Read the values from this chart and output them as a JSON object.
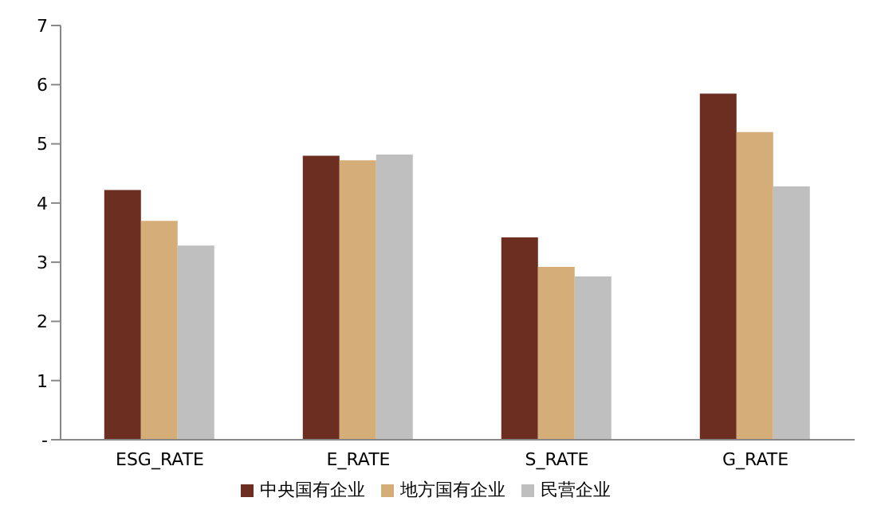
{
  "chart_data": {
    "type": "bar",
    "categories": [
      "ESG_RATE",
      "E_RATE",
      "S_RATE",
      "G_RATE"
    ],
    "series": [
      {
        "name": "中央国有企业",
        "color": "#6b2e20",
        "values": [
          4.22,
          4.8,
          3.42,
          5.85
        ]
      },
      {
        "name": "地方国有企业",
        "color": "#d4ad78",
        "values": [
          3.7,
          4.72,
          2.92,
          5.2
        ]
      },
      {
        "name": "民营企业",
        "color": "#bfbfbf",
        "values": [
          3.28,
          4.82,
          2.76,
          4.28
        ]
      }
    ],
    "ylim": [
      0,
      7
    ],
    "yticks": [
      {
        "value": 0,
        "label": "-"
      },
      1,
      2,
      3,
      4,
      5,
      6,
      7
    ],
    "grid": false,
    "legend": "bottom"
  }
}
